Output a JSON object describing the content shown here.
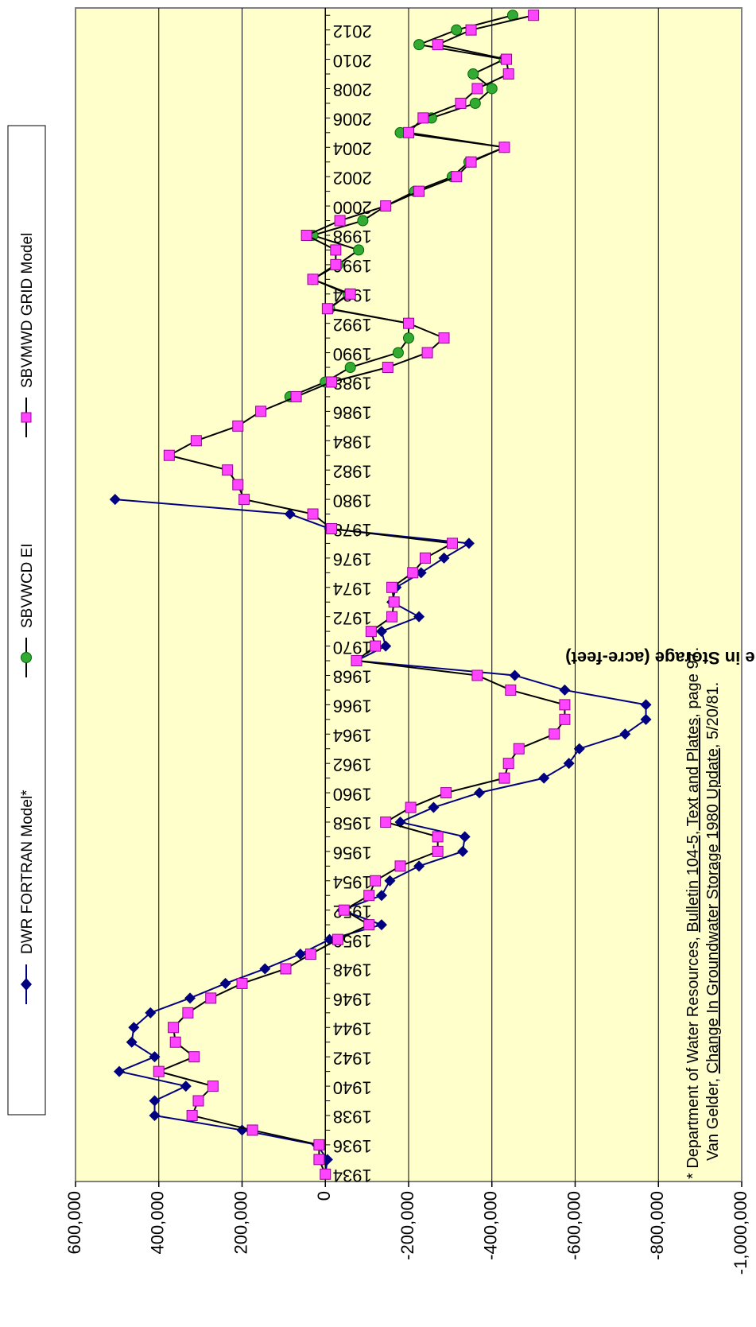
{
  "chart_data": {
    "type": "line",
    "orientation": "rotated 90 degrees clockwise",
    "ylabel": "Cumulative Change in Storage (acre-feet)",
    "ylim": [
      -1000000,
      600000
    ],
    "ytick_values": [
      600000,
      400000,
      200000,
      0,
      -200000,
      -400000,
      -600000,
      -800000,
      -1000000
    ],
    "ytick_labels": [
      "600,000",
      "400,000",
      "200,000",
      "0",
      "-200,000",
      "-400,000",
      "-600,000",
      "-800,000",
      "-1,000,000"
    ],
    "xlim": [
      1933.5,
      2013.5
    ],
    "xtick_values": [
      1934,
      1936,
      1938,
      1940,
      1942,
      1944,
      1946,
      1948,
      1950,
      1952,
      1954,
      1956,
      1958,
      1960,
      1962,
      1964,
      1966,
      1968,
      1970,
      1972,
      1974,
      1976,
      1978,
      1980,
      1982,
      1984,
      1986,
      1988,
      1990,
      1992,
      1994,
      1996,
      1998,
      2000,
      2002,
      2004,
      2006,
      2008,
      2010,
      2012
    ],
    "xtick_labels": [
      "1934",
      "1936",
      "1938",
      "1940",
      "1942",
      "1944",
      "1946",
      "1948",
      "1950",
      "1952",
      "1954",
      "1956",
      "1958",
      "1960",
      "1962",
      "1964",
      "1966",
      "1968",
      "1970",
      "1972",
      "1974",
      "1976",
      "1978",
      "1980",
      "1982",
      "1984",
      "1986",
      "1988",
      "1990",
      "1992",
      "1994",
      "1996",
      "1998",
      "2000",
      "2002",
      "2004",
      "2006",
      "2008",
      "2010",
      "2012"
    ],
    "grid": true,
    "background_color": "#ffffcc",
    "legend_position": "top",
    "series": [
      {
        "name": "DWR FORTRAN Model*",
        "color": "#000080",
        "marker": "diamond",
        "x": [
          1934,
          1935,
          1936,
          1937,
          1938,
          1939,
          1940,
          1941,
          1942,
          1943,
          1944,
          1945,
          1946,
          1947,
          1948,
          1949,
          1950,
          1951,
          1952,
          1953,
          1954,
          1955,
          1956,
          1957,
          1958,
          1959,
          1960,
          1961,
          1962,
          1963,
          1964,
          1965,
          1966,
          1967,
          1968,
          1969,
          1970,
          1971,
          1972,
          1973,
          1974,
          1975,
          1976,
          1977,
          1978,
          1979,
          1980
        ],
        "y": [
          0,
          -5000,
          20000,
          200000,
          410000,
          410000,
          335000,
          495000,
          410000,
          465000,
          460000,
          420000,
          325000,
          240000,
          145000,
          60000,
          -10000,
          -135000,
          -40000,
          -135000,
          -155000,
          -225000,
          -330000,
          -335000,
          -180000,
          -260000,
          -370000,
          -525000,
          -585000,
          -610000,
          -720000,
          -770000,
          -770000,
          -575000,
          -455000,
          -75000,
          -145000,
          -135000,
          -225000,
          -160000,
          -170000,
          -230000,
          -285000,
          -345000,
          -10000,
          85000,
          505000
        ]
      },
      {
        "name": "SBVWCD EI",
        "color": "#00a000",
        "marker": "circle",
        "x": [
          1987,
          1988,
          1989,
          1990,
          1991,
          1992,
          1993,
          1994,
          1995,
          1996,
          1997,
          1998,
          1999,
          2000,
          2001,
          2002,
          2003,
          2004,
          2005,
          2006,
          2007,
          2008,
          2009,
          2010,
          2011,
          2012,
          2013
        ],
        "y": [
          85000,
          0,
          -60000,
          -175000,
          -200000,
          -200000,
          -10000,
          -55000,
          30000,
          -30000,
          -80000,
          30000,
          -90000,
          -145000,
          -215000,
          -305000,
          -345000,
          -430000,
          -180000,
          -255000,
          -360000,
          -400000,
          -355000,
          -430000,
          -225000,
          -315000,
          -450000
        ]
      },
      {
        "name": "SBVMWD GRID Model",
        "color": "#ff00ff",
        "marker": "square",
        "x": [
          1934,
          1935,
          1936,
          1937,
          1938,
          1939,
          1940,
          1941,
          1942,
          1943,
          1944,
          1945,
          1946,
          1947,
          1948,
          1949,
          1950,
          1951,
          1952,
          1953,
          1954,
          1955,
          1956,
          1957,
          1958,
          1959,
          1960,
          1961,
          1962,
          1963,
          1964,
          1965,
          1966,
          1967,
          1968,
          1969,
          1970,
          1971,
          1972,
          1973,
          1974,
          1975,
          1976,
          1977,
          1978,
          1979,
          1980,
          1981,
          1982,
          1983,
          1984,
          1985,
          1986,
          1987,
          1988,
          1989,
          1990,
          1991,
          1992,
          1993,
          1994,
          1995,
          1996,
          1997,
          1998,
          1999,
          2000,
          2001,
          2002,
          2003,
          2004,
          2005,
          2006,
          2007,
          2008,
          2009,
          2010,
          2011,
          2012,
          2013
        ],
        "y": [
          0,
          15000,
          15000,
          175000,
          320000,
          305000,
          270000,
          400000,
          315000,
          360000,
          365000,
          330000,
          275000,
          200000,
          95000,
          35000,
          -30000,
          -105000,
          -45000,
          -105000,
          -120000,
          -180000,
          -270000,
          -270000,
          -145000,
          -205000,
          -290000,
          -430000,
          -440000,
          -465000,
          -550000,
          -575000,
          -575000,
          -445000,
          -365000,
          -75000,
          -120000,
          -110000,
          -160000,
          -165000,
          -160000,
          -210000,
          -240000,
          -305000,
          -15000,
          30000,
          195000,
          210000,
          235000,
          375000,
          310000,
          210000,
          155000,
          70000,
          -15000,
          -150000,
          -245000,
          -285000,
          -200000,
          -5000,
          -60000,
          30000,
          -25000,
          -25000,
          45000,
          -35000,
          -145000,
          -225000,
          -315000,
          -350000,
          -430000,
          -200000,
          -235000,
          -325000,
          -365000,
          -440000,
          -435000,
          -270000,
          -350000,
          -500000
        ]
      }
    ],
    "footnote_lines": [
      "*  Department of Water Resources, Bulletin 104-5, Text and Plates, page 97.",
      "Van Gelder, Change In Groundwater Storage 1980 Update, 5/20/81."
    ]
  },
  "legend": {
    "items": [
      {
        "label": "DWR FORTRAN Model*"
      },
      {
        "label": "SBVWCD EI"
      },
      {
        "label": "SBVMWD GRID Model"
      }
    ]
  },
  "footnote": {
    "line1_prefix": "*  Department of Water Resources, ",
    "line1_link": "Bulletin 104-5, Text and Plates",
    "line1_suffix": ", page 97.",
    "line2_prefix": "Van Gelder, ",
    "line2_link": "Change In Groundwater Storage 1980 Update",
    "line2_suffix": ", 5/20/81."
  }
}
